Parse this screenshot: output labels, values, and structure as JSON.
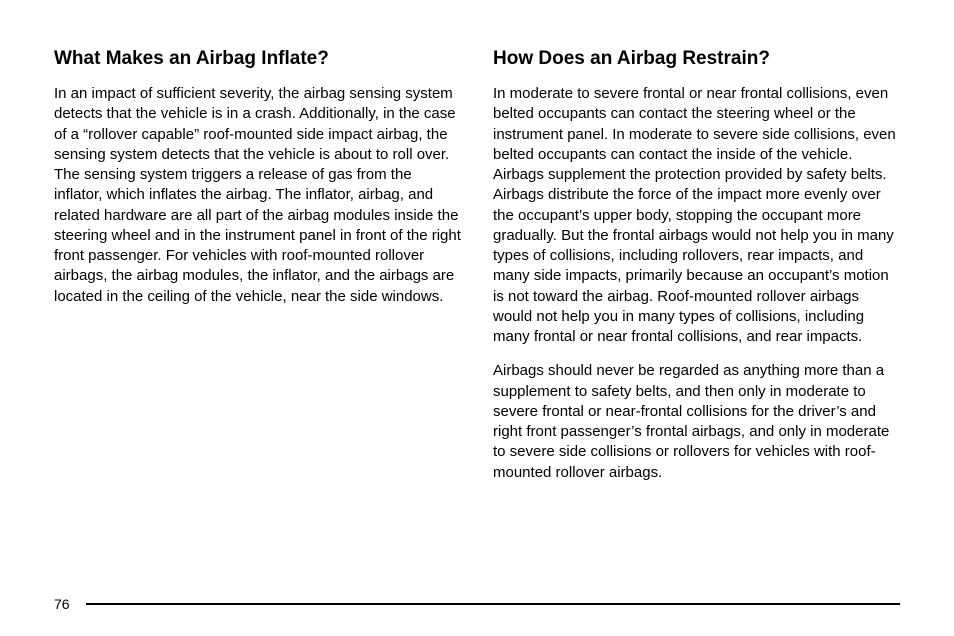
{
  "left": {
    "heading": "What Makes an Airbag Inflate?",
    "para1": "In an impact of sufficient severity, the airbag sensing system detects that the vehicle is in a crash. Additionally, in the case of a “rollover capable” roof-mounted side impact airbag, the sensing system detects that the vehicle is about to roll over. The sensing system triggers a release of gas from the inflator, which inflates the airbag. The inflator, airbag, and related hardware are all part of the airbag modules inside the steering wheel and in the instrument panel in front of the right front passenger. For vehicles with roof-mounted rollover airbags, the airbag modules, the inflator, and the airbags are located in the ceiling of the vehicle, near the side windows."
  },
  "right": {
    "heading": "How Does an Airbag Restrain?",
    "para1": "In moderate to severe frontal or near frontal collisions, even belted occupants can contact the steering wheel or the instrument panel. In moderate to severe side collisions, even belted occupants can contact the inside of the vehicle. Airbags supplement the protection provided by safety belts. Airbags distribute the force of the impact more evenly over the occupant’s upper body, stopping the occupant more gradually. But the frontal airbags would not help you in many types of collisions, including rollovers, rear impacts, and many side impacts, primarily because an occupant’s motion is not toward the airbag. Roof-mounted rollover airbags would not help you in many types of collisions, including many frontal or near frontal collisions, and rear impacts.",
    "para2": "Airbags should never be regarded as anything more than a supplement to safety belts, and then only in moderate to severe frontal or near-frontal collisions for the driver’s and right front passenger’s frontal airbags, and only in moderate to severe side collisions or rollovers for vehicles with roof-mounted rollover airbags."
  },
  "pageNumber": "76"
}
